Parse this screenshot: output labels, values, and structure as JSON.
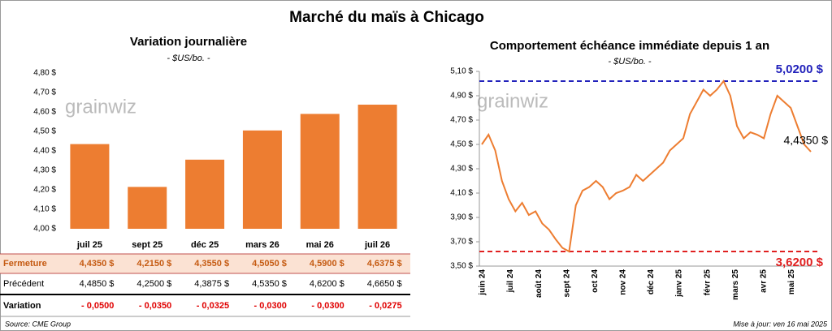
{
  "title": "Marché du maïs à Chicago",
  "source": "Source: CME Group",
  "updated": "Mise à jour: ven 16 mai 2025",
  "watermark": "grainwiz",
  "chart_data": [
    {
      "type": "bar",
      "title": "Variation journalière",
      "subtitle": "- $US/bo. -",
      "categories": [
        "juil 25",
        "sept 25",
        "déc 25",
        "mars 26",
        "mai 26",
        "juil 26"
      ],
      "values": [
        4.435,
        4.215,
        4.355,
        4.505,
        4.59,
        4.6375
      ],
      "color": "#ed7d31",
      "ylim": [
        4.0,
        4.8
      ],
      "yticks": [
        {
          "value": 4.0,
          "label": "4,00 $"
        },
        {
          "value": 4.1,
          "label": "4,10 $"
        },
        {
          "value": 4.2,
          "label": "4,20 $"
        },
        {
          "value": 4.3,
          "label": "4,30 $"
        },
        {
          "value": 4.4,
          "label": "4,40 $"
        },
        {
          "value": 4.5,
          "label": "4,50 $"
        },
        {
          "value": 4.6,
          "label": "4,60 $"
        },
        {
          "value": 4.7,
          "label": "4,70 $"
        },
        {
          "value": 4.8,
          "label": "4,80 $"
        }
      ]
    },
    {
      "type": "line",
      "title": "Comportement échéance immédiate depuis 1 an",
      "subtitle": "- $US/bo. -",
      "xtick_labels": [
        "juin 24",
        "juil 24",
        "août 24",
        "sept 24",
        "oct 24",
        "nov 24",
        "déc 24",
        "janv 25",
        "févr 25",
        "mars 25",
        "avr 25",
        "mai 25"
      ],
      "series": [
        {
          "name": "Maïs",
          "color": "#ed7d31",
          "values": [
            4.5,
            4.58,
            4.45,
            4.2,
            4.05,
            3.95,
            4.02,
            3.92,
            3.95,
            3.85,
            3.8,
            3.72,
            3.65,
            3.62,
            4.0,
            4.12,
            4.15,
            4.2,
            4.15,
            4.05,
            4.1,
            4.12,
            4.15,
            4.25,
            4.2,
            4.25,
            4.3,
            4.35,
            4.45,
            4.5,
            4.55,
            4.75,
            4.85,
            4.95,
            4.9,
            4.95,
            5.02,
            4.9,
            4.65,
            4.55,
            4.6,
            4.58,
            4.55,
            4.75,
            4.9,
            4.85,
            4.8,
            4.65,
            4.5,
            4.44
          ]
        }
      ],
      "ylim": [
        3.5,
        5.1
      ],
      "yticks": [
        {
          "value": 3.5,
          "label": "3,50 $"
        },
        {
          "value": 3.7,
          "label": "3,70 $"
        },
        {
          "value": 3.9,
          "label": "3,90 $"
        },
        {
          "value": 4.1,
          "label": "4,10 $"
        },
        {
          "value": 4.3,
          "label": "4,30 $"
        },
        {
          "value": 4.5,
          "label": "4,50 $"
        },
        {
          "value": 4.7,
          "label": "4,70 $"
        },
        {
          "value": 4.9,
          "label": "4,90 $"
        },
        {
          "value": 5.1,
          "label": "5,10 $"
        }
      ],
      "reference_lines": [
        {
          "value": 5.02,
          "label": "5,0200 $",
          "color": "#2222bb"
        },
        {
          "value": 3.62,
          "label": "3,6200 $",
          "color": "#e02020"
        }
      ],
      "last_label": {
        "value": 4.435,
        "label": "4,4350 $"
      }
    }
  ],
  "table": {
    "rows": [
      {
        "label": "Fermeture",
        "cells": [
          "4,4350 $",
          "4,2150 $",
          "4,3550 $",
          "4,5050 $",
          "4,5900 $",
          "4,6375 $"
        ]
      },
      {
        "label": "Précédent",
        "cells": [
          "4,4850 $",
          "4,2500 $",
          "4,3875 $",
          "4,5350 $",
          "4,6200 $",
          "4,6650 $"
        ]
      },
      {
        "label": "Variation",
        "cells": [
          "- 0,0500",
          "- 0,0350",
          "- 0,0325",
          "- 0,0300",
          "- 0,0300",
          "- 0,0275"
        ]
      }
    ]
  }
}
